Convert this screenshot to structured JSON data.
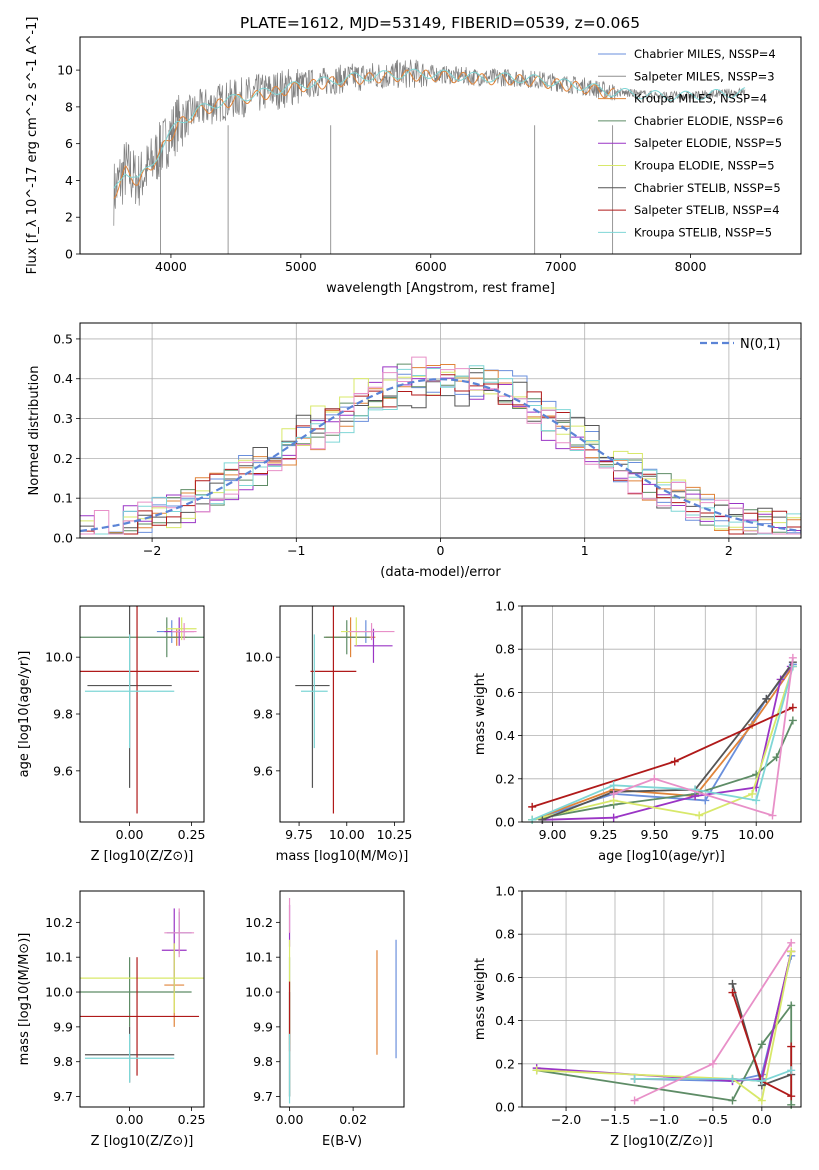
{
  "title": "PLATE=1612, MJD=53149, FIBERID=0539, z=0.065",
  "colors": [
    "#6a8fdc",
    "#8f8f8f",
    "#e0843a",
    "#5e8c66",
    "#9a35c5",
    "#d8e86a",
    "#555555",
    "#b01a1a",
    "#7fd6d6"
  ],
  "mass_colors": [
    "#6a8fdc",
    "#e0843a",
    "#5e8c66",
    "#9a35c5",
    "#d8e86a",
    "#555555",
    "#b01a1a",
    "#7fd6d6",
    "#e890c8"
  ],
  "legend": [
    "Chabrier MILES, N_SSP=4",
    "Salpeter MILES, N_SSP=3",
    "Kroupa MILES, N_SSP=4",
    "Chabrier ELODIE, N_SSP=6",
    "Salpeter ELODIE, N_SSP=5",
    "Kroupa ELODIE, N_SSP=5",
    "Chabrier STELIB, N_SSP=5",
    "Salpeter STELIB, N_SSP=4",
    "Kroupa STELIB, N_SSP=5"
  ],
  "chart_data": [
    {
      "type": "line",
      "panel": "spectrum",
      "xlabel": "wavelength [Angstrom, rest frame]",
      "ylabel": "Flux [f_λ 10^-17 erg cm^-2 s^-1 A^-1]",
      "xlim": [
        3300,
        8850
      ],
      "ylim": [
        0,
        11.8
      ],
      "xticks": [
        4000,
        5000,
        6000,
        7000,
        8000
      ],
      "yticks": [
        0,
        2,
        4,
        6,
        8,
        10
      ],
      "continuum": {
        "x": [
          3550,
          3650,
          3750,
          3850,
          3950,
          4050,
          4200,
          4400,
          4600,
          4800,
          5000,
          5200,
          5400,
          5600,
          5800,
          6000,
          6200,
          6400,
          6600,
          6800,
          7000,
          7200,
          7400,
          7600,
          7800,
          8000,
          8200,
          8400
        ],
        "y": [
          3.2,
          4.6,
          4.0,
          4.9,
          6.0,
          7.1,
          7.8,
          8.3,
          8.6,
          8.9,
          9.2,
          9.4,
          9.6,
          9.7,
          9.8,
          9.8,
          9.7,
          9.6,
          9.6,
          9.5,
          9.3,
          9.1,
          8.8,
          8.7,
          8.6,
          8.6,
          8.7,
          8.8
        ]
      }
    },
    {
      "type": "bar",
      "panel": "residuals",
      "xlabel": "(data-model)/error",
      "ylabel": "Normed distribution",
      "xlim": [
        -2.5,
        2.5
      ],
      "ylim": [
        0,
        0.54
      ],
      "xticks": [
        -2,
        -1,
        0,
        1,
        2
      ],
      "yticks": [
        0,
        0.1,
        0.2,
        0.3,
        0.4,
        0.5
      ],
      "legend_label": "N(0,1)",
      "legend_position": "top-right",
      "grid": true
    },
    {
      "type": "scatter",
      "panel": "Z-age",
      "xlabel": "Z [log10(Z/Z⊙)]",
      "ylabel": "age [log10(age/yr)]",
      "xlim": [
        -0.2,
        0.3
      ],
      "ylim": [
        9.42,
        10.18
      ],
      "xticks": [
        0.0,
        0.25
      ],
      "yticks": [
        9.6,
        9.8,
        10.0
      ],
      "points": [
        {
          "x": 0.17,
          "y": 10.09,
          "xe": 0.06,
          "ye": 0.04
        },
        {
          "x": 0.19,
          "y": 10.07,
          "xe": 0.04,
          "ye": 0.03
        },
        {
          "x": 0.15,
          "y": 10.07,
          "xe": 0.38,
          "ye": 0.07
        },
        {
          "x": 0.2,
          "y": 10.09,
          "xe": 0.06,
          "ye": 0.05
        },
        {
          "x": 0.21,
          "y": 10.1,
          "xe": 0.06,
          "ye": 0.04
        },
        {
          "x": 0.0,
          "y": 9.9,
          "xe": 0.17,
          "ye": 0.36
        },
        {
          "x": 0.03,
          "y": 9.95,
          "xe": 0.25,
          "ye": 0.5
        },
        {
          "x": 0.0,
          "y": 9.88,
          "xe": 0.18,
          "ye": 0.2
        },
        {
          "x": 0.22,
          "y": 10.09,
          "xe": 0.05,
          "ye": 0.03
        }
      ]
    },
    {
      "type": "scatter",
      "panel": "mass-age",
      "xlabel": "mass [log10(M/M⊙)]",
      "ylabel": "",
      "xlim": [
        9.65,
        10.3
      ],
      "ylim": [
        9.42,
        10.18
      ],
      "xticks": [
        9.75,
        10.0,
        10.25
      ],
      "yticks": [
        9.6,
        9.8,
        10.0
      ],
      "points": [
        {
          "x": 10.1,
          "y": 10.09,
          "xe": 0.05,
          "ye": 0.04
        },
        {
          "x": 10.02,
          "y": 10.07,
          "xe": 0.13,
          "ye": 0.07
        },
        {
          "x": 10.0,
          "y": 10.07,
          "xe": 0.12,
          "ye": 0.06
        },
        {
          "x": 10.14,
          "y": 10.04,
          "xe": 0.1,
          "ye": 0.06
        },
        {
          "x": 10.05,
          "y": 10.09,
          "xe": 0.08,
          "ye": 0.05
        },
        {
          "x": 9.82,
          "y": 9.9,
          "xe": 0.09,
          "ye": 0.36
        },
        {
          "x": 9.93,
          "y": 9.95,
          "xe": 0.12,
          "ye": 0.5
        },
        {
          "x": 9.83,
          "y": 9.88,
          "xe": 0.07,
          "ye": 0.2
        },
        {
          "x": 10.13,
          "y": 10.09,
          "xe": 0.12,
          "ye": 0.03
        }
      ]
    },
    {
      "type": "line",
      "panel": "age-massweight",
      "xlabel": "age [log10(age/yr)]",
      "ylabel": "mass weight",
      "xlim": [
        8.85,
        10.22
      ],
      "ylim": [
        0,
        1.0
      ],
      "xticks": [
        9.0,
        9.25,
        9.5,
        9.75,
        10.0
      ],
      "yticks": [
        0.0,
        0.2,
        0.4,
        0.6,
        0.8,
        1.0
      ],
      "grid": true,
      "series": [
        {
          "x": [
            8.9,
            9.3,
            9.75,
            10.05,
            10.18
          ],
          "y": [
            0.01,
            0.13,
            0.1,
            0.57,
            0.73
          ]
        },
        {
          "x": [
            8.9,
            9.3,
            9.7,
            9.98,
            10.18
          ],
          "y": [
            0.01,
            0.15,
            0.12,
            0.45,
            0.72
          ]
        },
        {
          "x": [
            8.9,
            9.3,
            9.7,
            10.0,
            10.1,
            10.18
          ],
          "y": [
            0.01,
            0.08,
            0.13,
            0.22,
            0.3,
            0.47
          ]
        },
        {
          "x": [
            8.95,
            9.3,
            9.7,
            10.0,
            10.12,
            10.17
          ],
          "y": [
            0.01,
            0.02,
            0.12,
            0.16,
            0.66,
            0.72
          ]
        },
        {
          "x": [
            8.9,
            9.3,
            9.72,
            9.98,
            10.18
          ],
          "y": [
            0.01,
            0.1,
            0.03,
            0.13,
            0.72
          ]
        },
        {
          "x": [
            8.95,
            9.3,
            9.7,
            10.05,
            10.18
          ],
          "y": [
            0.01,
            0.14,
            0.15,
            0.57,
            0.74
          ]
        },
        {
          "x": [
            8.9,
            9.6,
            10.18
          ],
          "y": [
            0.07,
            0.28,
            0.53
          ]
        },
        {
          "x": [
            8.9,
            9.3,
            9.7,
            10.0,
            10.18
          ],
          "y": [
            0.01,
            0.17,
            0.15,
            0.1,
            0.72
          ]
        },
        {
          "x": [
            9.3,
            9.5,
            10.08,
            10.18
          ],
          "y": [
            0.13,
            0.2,
            0.03,
            0.76
          ]
        }
      ]
    },
    {
      "type": "scatter",
      "panel": "Z-mass",
      "xlabel": "Z [log10(Z/Z⊙)]",
      "ylabel": "mass [log10(M/M⊙)]",
      "xlim": [
        -0.2,
        0.3
      ],
      "ylim": [
        9.67,
        10.29
      ],
      "xticks": [
        0.0,
        0.25
      ],
      "yticks": [
        9.7,
        9.8,
        9.9,
        10.0,
        10.1,
        10.2
      ],
      "points": [
        {
          "x": 0.2,
          "y": 10.17,
          "xe": 0.05,
          "ye": 0.06
        },
        {
          "x": 0.18,
          "y": 10.02,
          "xe": 0.04,
          "ye": 0.12
        },
        {
          "x": 0.0,
          "y": 10.0,
          "xe": 0.25,
          "ye": 0.1
        },
        {
          "x": 0.18,
          "y": 10.12,
          "xe": 0.05,
          "ye": 0.12
        },
        {
          "x": 0.18,
          "y": 10.04,
          "xe": 0.38,
          "ye": 0.1
        },
        {
          "x": 0.0,
          "y": 9.82,
          "xe": 0.18,
          "ye": 0.08
        },
        {
          "x": 0.03,
          "y": 9.93,
          "xe": 0.25,
          "ye": 0.17
        },
        {
          "x": 0.0,
          "y": 9.81,
          "xe": 0.18,
          "ye": 0.07
        },
        {
          "x": 0.2,
          "y": 10.17,
          "xe": 0.06,
          "ye": 0.07
        }
      ]
    },
    {
      "type": "scatter",
      "panel": "EBV-mass",
      "xlabel": "E(B-V)",
      "ylabel": "",
      "xlim": [
        -0.003,
        0.036
      ],
      "ylim": [
        9.67,
        10.29
      ],
      "xticks": [
        0.0,
        0.02
      ],
      "yticks": [
        9.7,
        9.8,
        9.9,
        10.0,
        10.1,
        10.2
      ],
      "points": [
        {
          "x": 0.0335,
          "y": 9.98,
          "xe": 0,
          "ye": 0.17
        },
        {
          "x": 0.0275,
          "y": 9.97,
          "xe": 0,
          "ye": 0.15
        },
        {
          "x": 0.0,
          "y": 9.9,
          "xe": 0,
          "ye": 0.2
        },
        {
          "x": 0.0,
          "y": 10.19,
          "xe": 0,
          "ye": 0.06
        },
        {
          "x": 0.0,
          "y": 10.0,
          "xe": 0,
          "ye": 0.15
        },
        {
          "x": 0.0,
          "y": 9.85,
          "xe": 0,
          "ye": 0.15
        },
        {
          "x": 0.0,
          "y": 9.93,
          "xe": 0,
          "ye": 0.1
        },
        {
          "x": 0.0,
          "y": 9.78,
          "xe": 0,
          "ye": 0.1
        },
        {
          "x": 0.0,
          "y": 10.22,
          "xe": 0,
          "ye": 0.05
        }
      ]
    },
    {
      "type": "line",
      "panel": "Z-massweight",
      "xlabel": "Z [log10(Z/Z⊙)]",
      "ylabel": "mass weight",
      "xlim": [
        -2.45,
        0.4
      ],
      "ylim": [
        0,
        1.0
      ],
      "xticks": [
        -2.0,
        -1.5,
        -1.0,
        -0.5,
        0.0
      ],
      "yticks": [
        0.0,
        0.2,
        0.4,
        0.6,
        0.8,
        1.0
      ],
      "grid": true,
      "series": [
        {
          "x": [
            -1.3,
            -0.3,
            0.0,
            0.3
          ],
          "y": [
            0.13,
            0.12,
            0.15,
            0.7
          ]
        },
        {
          "x": [
            -1.3,
            -0.3,
            0.0,
            0.3
          ],
          "y": [
            0.13,
            0.13,
            0.12,
            0.72
          ]
        },
        {
          "x": [
            -2.3,
            -0.3,
            0.0,
            0.3,
            0.3
          ],
          "y": [
            0.17,
            0.03,
            0.29,
            0.47,
            0.01
          ]
        },
        {
          "x": [
            -2.3,
            -0.3,
            0.0,
            0.3
          ],
          "y": [
            0.18,
            0.12,
            0.13,
            0.72
          ]
        },
        {
          "x": [
            -2.3,
            -0.3,
            0.0,
            0.3
          ],
          "y": [
            0.17,
            0.13,
            0.03,
            0.72
          ]
        },
        {
          "x": [
            -0.3,
            0.0,
            0.3
          ],
          "y": [
            0.57,
            0.1,
            0.15
          ]
        },
        {
          "x": [
            -0.3,
            0.0,
            0.3,
            0.3
          ],
          "y": [
            0.53,
            0.12,
            0.05,
            0.28
          ]
        },
        {
          "x": [
            -1.3,
            -0.3,
            0.0,
            0.3
          ],
          "y": [
            0.13,
            0.13,
            0.12,
            0.17
          ]
        },
        {
          "x": [
            -1.3,
            -0.5,
            0.3
          ],
          "y": [
            0.03,
            0.2,
            0.76
          ]
        }
      ]
    }
  ]
}
